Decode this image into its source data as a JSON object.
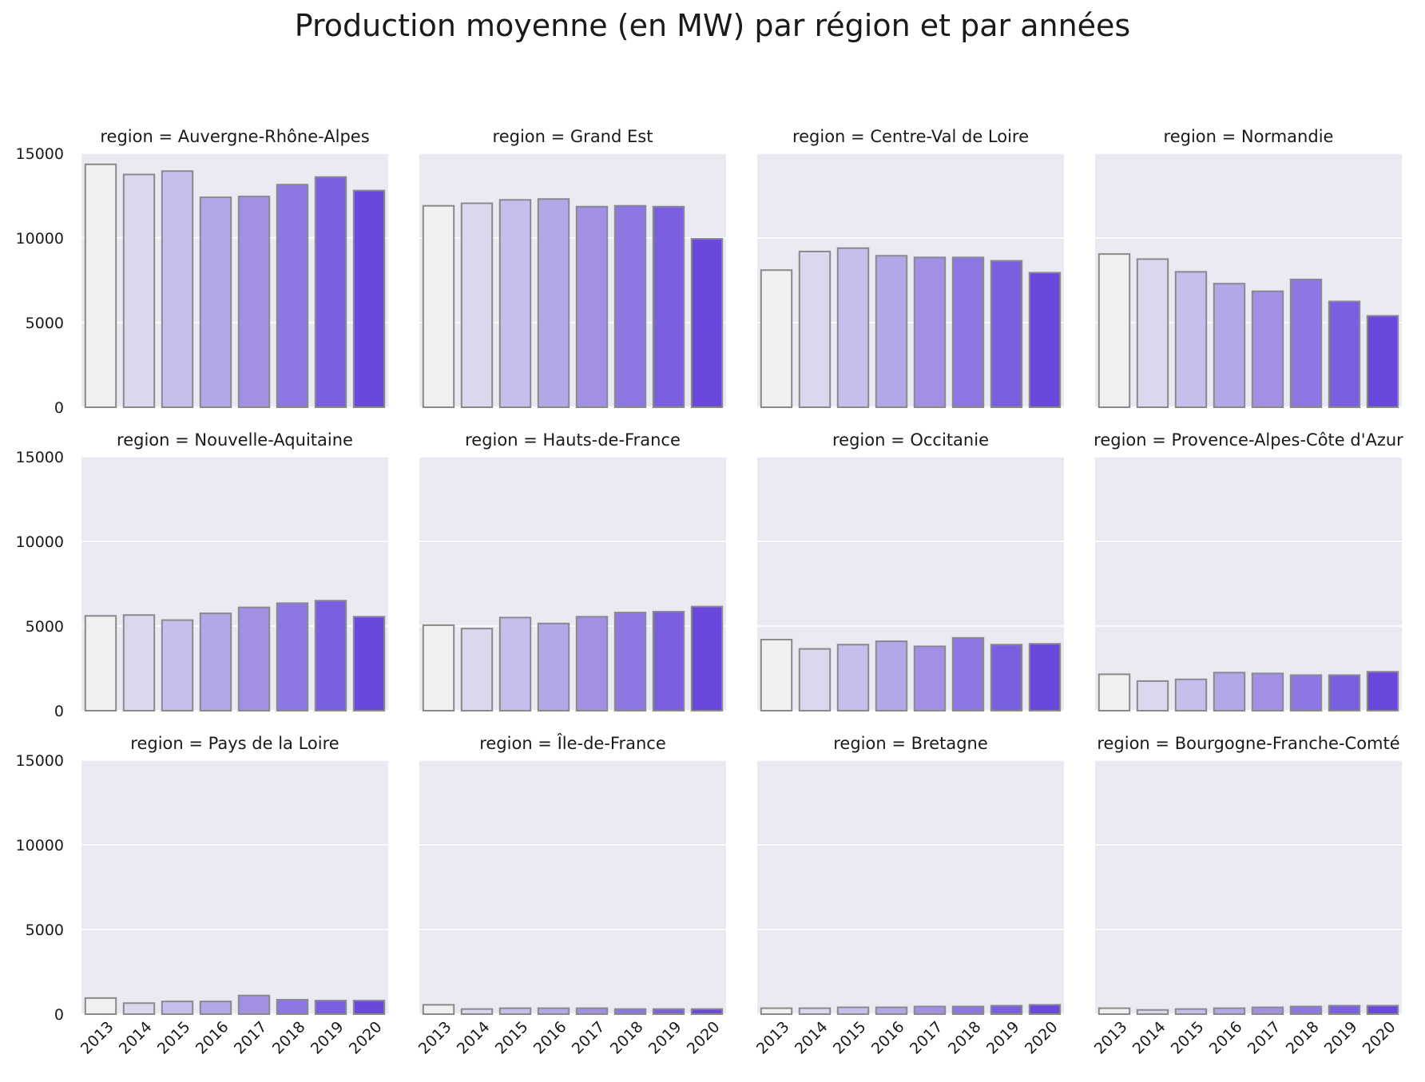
{
  "chart_data": {
    "type": "bar",
    "title": "Production moyenne (en MW) par région et par années",
    "categories": [
      "2013",
      "2014",
      "2015",
      "2016",
      "2017",
      "2018",
      "2019",
      "2020"
    ],
    "ylim": [
      0,
      15000
    ],
    "yticks": [
      "0",
      "5000",
      "10000",
      "15000"
    ],
    "grid": true,
    "panel_label_prefix": "region = ",
    "colors": [
      "#f0f0f0",
      "#dcd7ef",
      "#c8beee",
      "#b4a7e8",
      "#a290e5",
      "#8d78e3",
      "#7a60e0",
      "#6a48dd"
    ],
    "panels": [
      {
        "region": "Auvergne-Rhône-Alpes",
        "values": [
          14350,
          13750,
          13950,
          12400,
          12450,
          13150,
          13600,
          12800
        ]
      },
      {
        "region": "Grand Est",
        "values": [
          11900,
          12050,
          12250,
          12300,
          11850,
          11900,
          11850,
          9950
        ]
      },
      {
        "region": "Centre-Val de Loire",
        "values": [
          8100,
          9200,
          9400,
          8950,
          8850,
          8850,
          8650,
          7950
        ]
      },
      {
        "region": "Normandie",
        "values": [
          9050,
          8750,
          8000,
          7300,
          6850,
          7550,
          6250,
          5400
        ]
      },
      {
        "region": "Nouvelle-Aquitaine",
        "values": [
          5600,
          5650,
          5350,
          5750,
          6100,
          6350,
          6500,
          5550
        ]
      },
      {
        "region": "Hauts-de-France",
        "values": [
          5050,
          4850,
          5500,
          5150,
          5550,
          5800,
          5850,
          6150
        ]
      },
      {
        "region": "Occitanie",
        "values": [
          4200,
          3650,
          3900,
          4100,
          3800,
          4300,
          3900,
          3950
        ]
      },
      {
        "region": "Provence-Alpes-Côte d'Azur",
        "values": [
          2150,
          1750,
          1850,
          2250,
          2200,
          2100,
          2100,
          2300
        ]
      },
      {
        "region": "Pays de la Loire",
        "values": [
          950,
          650,
          750,
          750,
          1100,
          850,
          800,
          800
        ]
      },
      {
        "region": "Île-de-France",
        "values": [
          550,
          300,
          350,
          350,
          350,
          300,
          300,
          300
        ]
      },
      {
        "region": "Bretagne",
        "values": [
          350,
          350,
          400,
          400,
          450,
          450,
          500,
          550
        ]
      },
      {
        "region": "Bourgogne-Franche-Comté",
        "values": [
          350,
          250,
          300,
          350,
          400,
          450,
          500,
          500
        ]
      }
    ]
  }
}
